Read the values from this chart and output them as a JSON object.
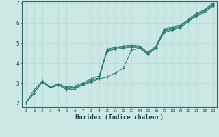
{
  "xlabel": "Humidex (Indice chaleur)",
  "bg_color": "#cce8e4",
  "line_color": "#2e7d72",
  "grid_color": "#b8ddd8",
  "xlim": [
    -0.5,
    23.5
  ],
  "ylim": [
    1.8,
    7.1
  ],
  "xticks": [
    0,
    1,
    2,
    3,
    4,
    5,
    6,
    7,
    8,
    9,
    10,
    11,
    12,
    13,
    14,
    15,
    16,
    17,
    18,
    19,
    20,
    21,
    22,
    23
  ],
  "yticks": [
    2,
    3,
    4,
    5,
    6,
    7
  ],
  "series": [
    [
      2.0,
      2.5,
      3.05,
      2.75,
      2.9,
      2.65,
      2.7,
      2.9,
      3.05,
      3.2,
      3.3,
      3.5,
      3.75,
      4.65,
      4.75,
      4.45,
      4.75,
      5.55,
      5.65,
      5.75,
      6.1,
      6.35,
      6.55,
      6.85
    ],
    [
      2.0,
      2.5,
      3.05,
      2.75,
      2.9,
      2.7,
      2.75,
      2.9,
      3.1,
      3.25,
      4.6,
      4.7,
      4.75,
      4.8,
      4.75,
      4.45,
      4.75,
      5.6,
      5.7,
      5.8,
      6.1,
      6.4,
      6.6,
      6.9
    ],
    [
      2.0,
      2.5,
      3.05,
      2.8,
      2.95,
      2.75,
      2.8,
      2.95,
      3.15,
      3.25,
      4.65,
      4.75,
      4.8,
      4.85,
      4.8,
      4.5,
      4.8,
      5.65,
      5.75,
      5.85,
      6.15,
      6.45,
      6.65,
      6.95
    ],
    [
      2.0,
      2.65,
      3.1,
      2.8,
      2.95,
      2.8,
      2.85,
      3.0,
      3.2,
      3.35,
      4.7,
      4.8,
      4.85,
      4.9,
      4.85,
      4.55,
      4.85,
      5.7,
      5.8,
      5.9,
      6.2,
      6.5,
      6.7,
      7.0
    ]
  ],
  "marker": "+"
}
